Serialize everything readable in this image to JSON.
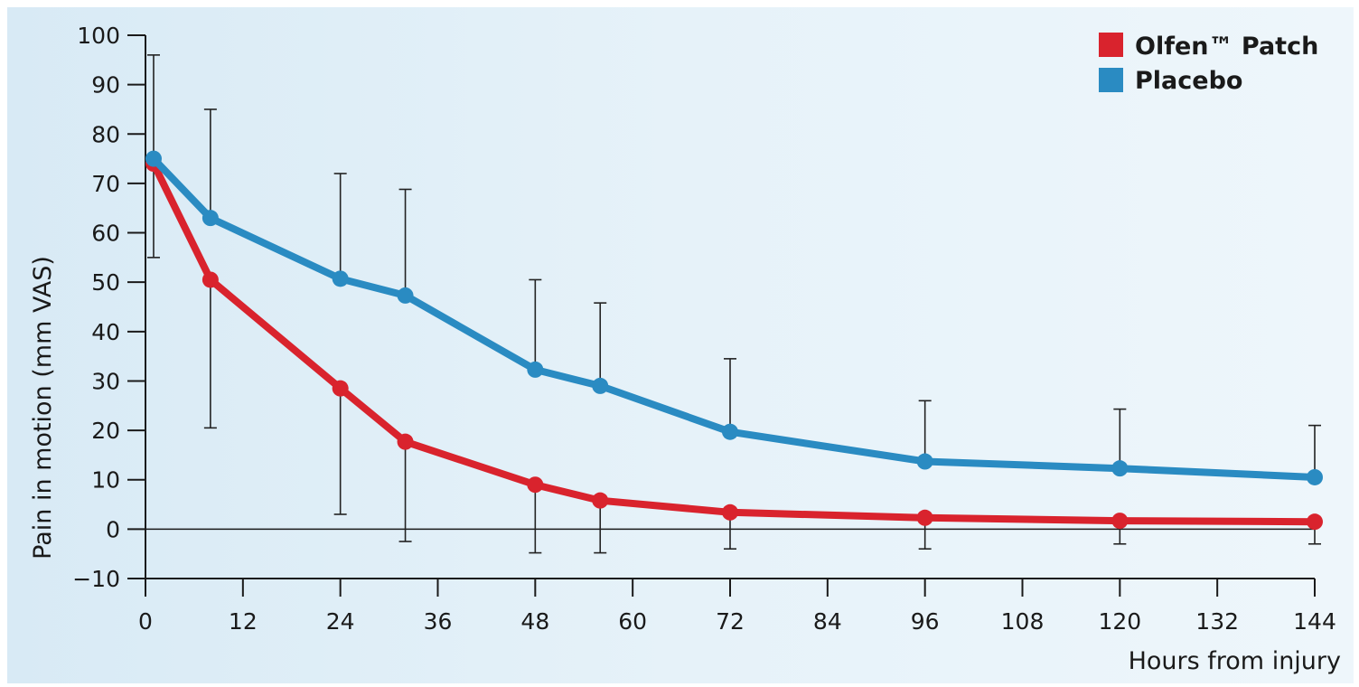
{
  "chart_data": {
    "type": "line",
    "title": "",
    "xlabel": "Hours from injury",
    "ylabel": "Pain in motion (mm VAS)",
    "xlim": [
      0,
      144
    ],
    "ylim": [
      -10,
      100
    ],
    "xticks": [
      0,
      12,
      24,
      36,
      48,
      60,
      72,
      84,
      96,
      108,
      120,
      132,
      144
    ],
    "yticks": [
      -10,
      0,
      10,
      20,
      30,
      40,
      50,
      60,
      70,
      80,
      90,
      100
    ],
    "x": [
      1,
      8,
      24,
      32,
      48,
      56,
      72,
      96,
      120,
      144
    ],
    "series": [
      {
        "name": "Olfen™ Patch",
        "color": "#d9232d",
        "values": [
          74,
          50.5,
          28.5,
          17.7,
          9,
          5.8,
          3.4,
          2.3,
          1.7,
          1.5
        ],
        "error_lower": [
          55,
          20.5,
          3,
          -2.5,
          -4.8,
          -4.8,
          -4,
          -4,
          -3,
          -3
        ]
      },
      {
        "name": "Placebo",
        "color": "#2a8bc2",
        "values": [
          75,
          63,
          50.7,
          47.3,
          32.3,
          29,
          19.7,
          13.7,
          12.3,
          10.5
        ],
        "error_upper": [
          96,
          85,
          72,
          68.8,
          50.5,
          45.8,
          34.5,
          26,
          24.3,
          21
        ]
      }
    ],
    "grid": false,
    "legend_position": "top-right",
    "background": "#e3f0f8"
  }
}
